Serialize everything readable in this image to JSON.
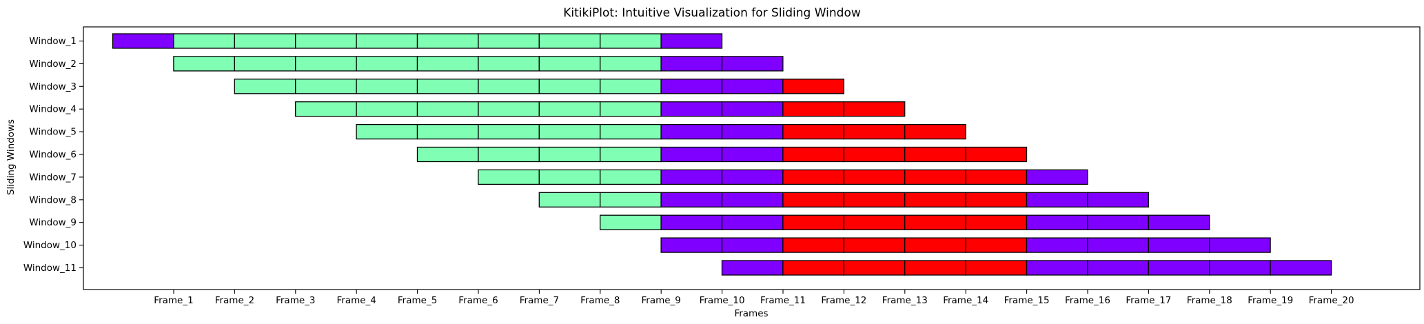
{
  "chart_data": {
    "type": "bar",
    "subtype": "horizontal-segmented",
    "title": "KitikiPlot: Intuitive Visualization for Sliding Window",
    "xlabel": "Frames",
    "ylabel": "Sliding Windows",
    "grid": false,
    "legend": "none",
    "x_ticks": [
      "Frame_1",
      "Frame_2",
      "Frame_3",
      "Frame_4",
      "Frame_5",
      "Frame_6",
      "Frame_7",
      "Frame_8",
      "Frame_9",
      "Frame_10",
      "Frame_11",
      "Frame_12",
      "Frame_13",
      "Frame_14",
      "Frame_15",
      "Frame_16",
      "Frame_17",
      "Frame_18",
      "Frame_19",
      "Frame_20"
    ],
    "colors": {
      "purple": "#7F00FF",
      "green": "#80FFB4",
      "red": "#FF0000"
    },
    "windows": [
      {
        "name": "Window_1",
        "start": 1,
        "cells": [
          "purple",
          "green",
          "green",
          "green",
          "green",
          "green",
          "green",
          "green",
          "green",
          "purple"
        ]
      },
      {
        "name": "Window_2",
        "start": 2,
        "cells": [
          "green",
          "green",
          "green",
          "green",
          "green",
          "green",
          "green",
          "green",
          "purple",
          "purple"
        ]
      },
      {
        "name": "Window_3",
        "start": 3,
        "cells": [
          "green",
          "green",
          "green",
          "green",
          "green",
          "green",
          "green",
          "purple",
          "purple",
          "red"
        ]
      },
      {
        "name": "Window_4",
        "start": 4,
        "cells": [
          "green",
          "green",
          "green",
          "green",
          "green",
          "green",
          "purple",
          "purple",
          "red",
          "red"
        ]
      },
      {
        "name": "Window_5",
        "start": 5,
        "cells": [
          "green",
          "green",
          "green",
          "green",
          "green",
          "purple",
          "purple",
          "red",
          "red",
          "red"
        ]
      },
      {
        "name": "Window_6",
        "start": 6,
        "cells": [
          "green",
          "green",
          "green",
          "green",
          "purple",
          "purple",
          "red",
          "red",
          "red",
          "red"
        ]
      },
      {
        "name": "Window_7",
        "start": 7,
        "cells": [
          "green",
          "green",
          "green",
          "purple",
          "purple",
          "red",
          "red",
          "red",
          "red",
          "purple"
        ]
      },
      {
        "name": "Window_8",
        "start": 8,
        "cells": [
          "green",
          "green",
          "purple",
          "purple",
          "red",
          "red",
          "red",
          "red",
          "purple",
          "purple"
        ]
      },
      {
        "name": "Window_9",
        "start": 9,
        "cells": [
          "green",
          "purple",
          "purple",
          "red",
          "red",
          "red",
          "red",
          "purple",
          "purple",
          "purple"
        ]
      },
      {
        "name": "Window_10",
        "start": 10,
        "cells": [
          "purple",
          "purple",
          "red",
          "red",
          "red",
          "red",
          "purple",
          "purple",
          "purple",
          "purple"
        ]
      },
      {
        "name": "Window_11",
        "start": 11,
        "cells": [
          "purple",
          "red",
          "red",
          "red",
          "red",
          "purple",
          "purple",
          "purple",
          "purple",
          "purple"
        ]
      }
    ]
  }
}
